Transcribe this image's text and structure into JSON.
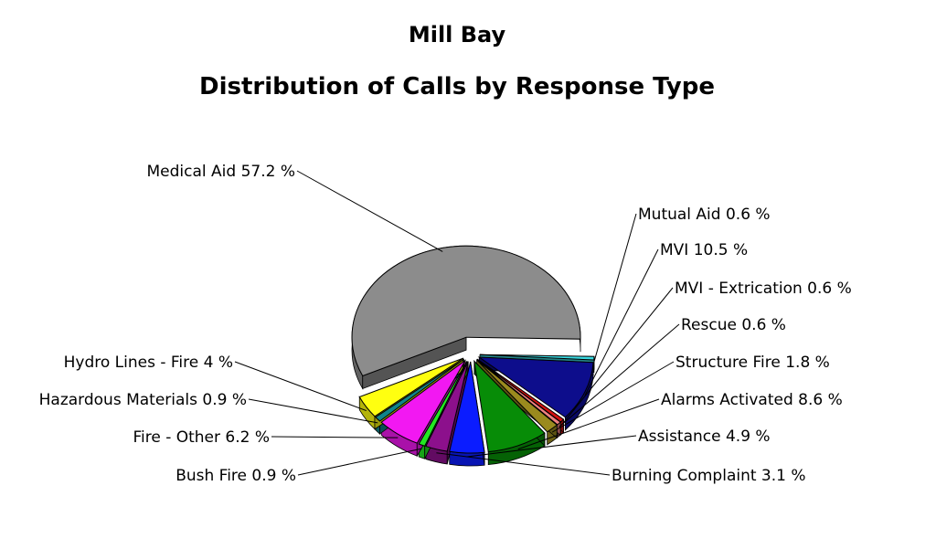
{
  "chart_data": {
    "type": "pie",
    "title": "Mill Bay",
    "subtitle": "Distribution of Calls by Response Type",
    "slices": [
      {
        "label": "Medical Aid",
        "value": 57.2,
        "value_text": "57.2 %",
        "color": "#8c8c8c"
      },
      {
        "label": "Mutual Aid",
        "value": 0.6,
        "value_text": "0.6 %",
        "color": "#3ad8e0"
      },
      {
        "label": "MVI",
        "value": 10.5,
        "value_text": "10.5 %",
        "color": "#0d0d8c"
      },
      {
        "label": "MVI - Extrication",
        "value": 0.6,
        "value_text": "0.6 %",
        "color": "#d41010"
      },
      {
        "label": "Rescue",
        "value": 0.6,
        "value_text": "0.6 %",
        "color": "#f08080"
      },
      {
        "label": "Structure Fire",
        "value": 1.8,
        "value_text": "1.8 %",
        "color": "#9a8a1e"
      },
      {
        "label": "Alarms Activated",
        "value": 8.6,
        "value_text": "8.6 %",
        "color": "#078c07"
      },
      {
        "label": "Assistance",
        "value": 4.9,
        "value_text": "4.9 %",
        "color": "#0b1cff"
      },
      {
        "label": "Burning Complaint",
        "value": 3.1,
        "value_text": "3.1 %",
        "color": "#8c108c"
      },
      {
        "label": "Bush Fire",
        "value": 0.9,
        "value_text": "0.9 %",
        "color": "#22e822"
      },
      {
        "label": "Fire - Other",
        "value": 6.2,
        "value_text": "6.2 %",
        "color": "#f218f2"
      },
      {
        "label": "Hazardous Materials",
        "value": 0.9,
        "value_text": "0.9 %",
        "color": "#10858a"
      },
      {
        "label": "Hydro Lines - Fire",
        "value": 4,
        "value_text": "4 %",
        "color": "#ffff10"
      }
    ]
  }
}
